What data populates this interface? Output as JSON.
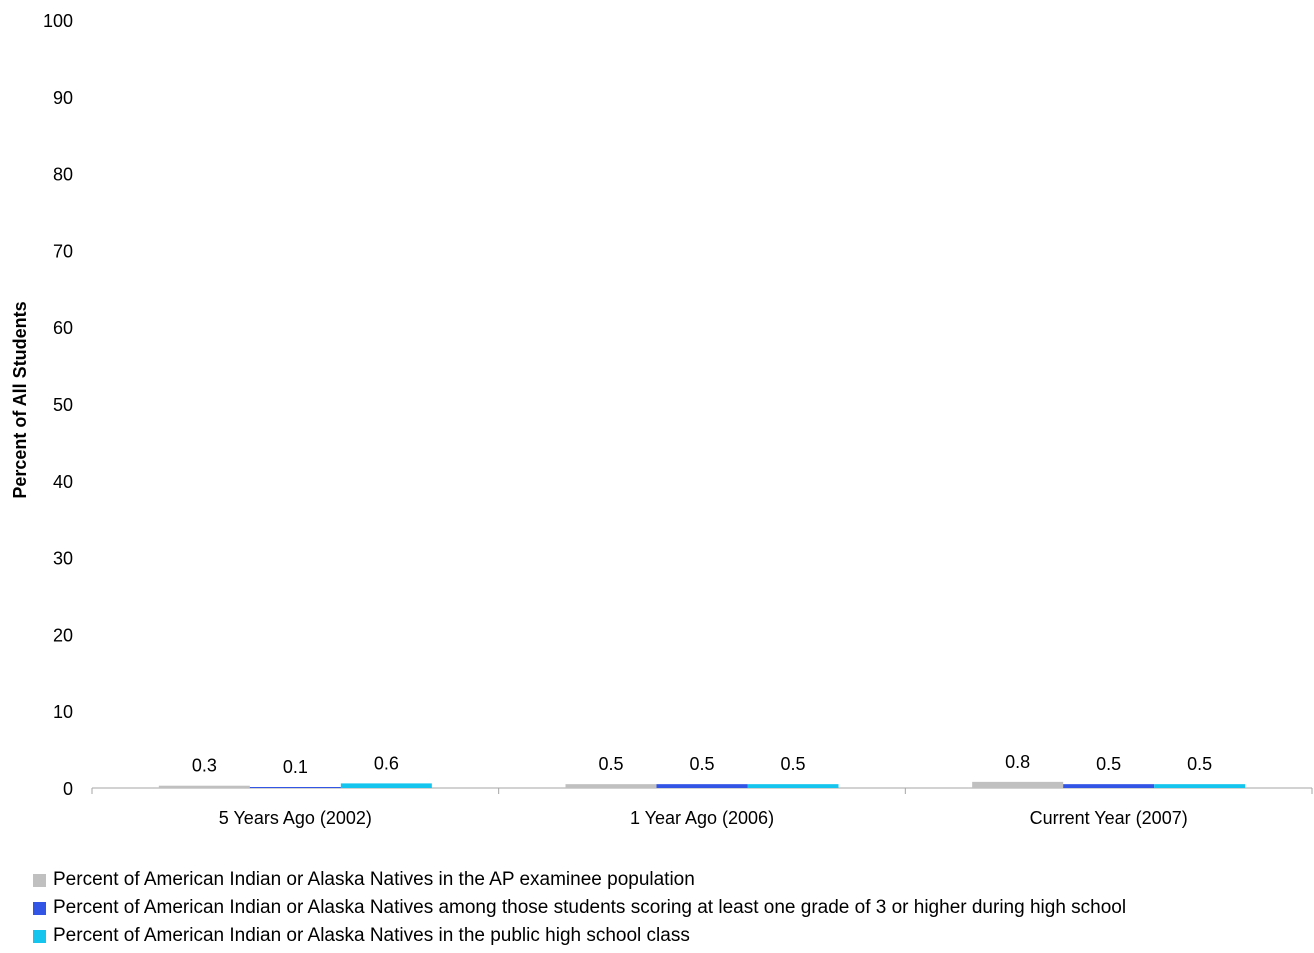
{
  "chart_data": {
    "type": "bar",
    "title": "",
    "xlabel": "",
    "ylabel": "Percent of All Students",
    "ylim": [
      0,
      100
    ],
    "yticks": [
      0,
      10,
      20,
      30,
      40,
      50,
      60,
      70,
      80,
      90,
      100
    ],
    "grid": false,
    "legend_position": "bottom",
    "categories": [
      "5 Years Ago (2002)",
      "1 Year Ago (2006)",
      "Current Year (2007)"
    ],
    "series": [
      {
        "name": "Percent of American Indian or Alaska Natives in the AP examinee population",
        "color": "#c0c0c0",
        "values": [
          0.3,
          0.5,
          0.8
        ],
        "labels": [
          "0.3",
          "0.5",
          "0.8"
        ]
      },
      {
        "name": "Percent of American Indian or Alaska Natives among those students scoring at least one grade of 3 or higher during high school",
        "color": "#3355e6",
        "values": [
          0.1,
          0.5,
          0.5
        ],
        "labels": [
          "0.1",
          "0.5",
          "0.5"
        ]
      },
      {
        "name": "Percent of American Indian or Alaska Natives in the public high school class",
        "color": "#16c5ee",
        "values": [
          0.6,
          0.5,
          0.5
        ],
        "labels": [
          "0.6",
          "0.5",
          "0.5"
        ]
      }
    ]
  }
}
